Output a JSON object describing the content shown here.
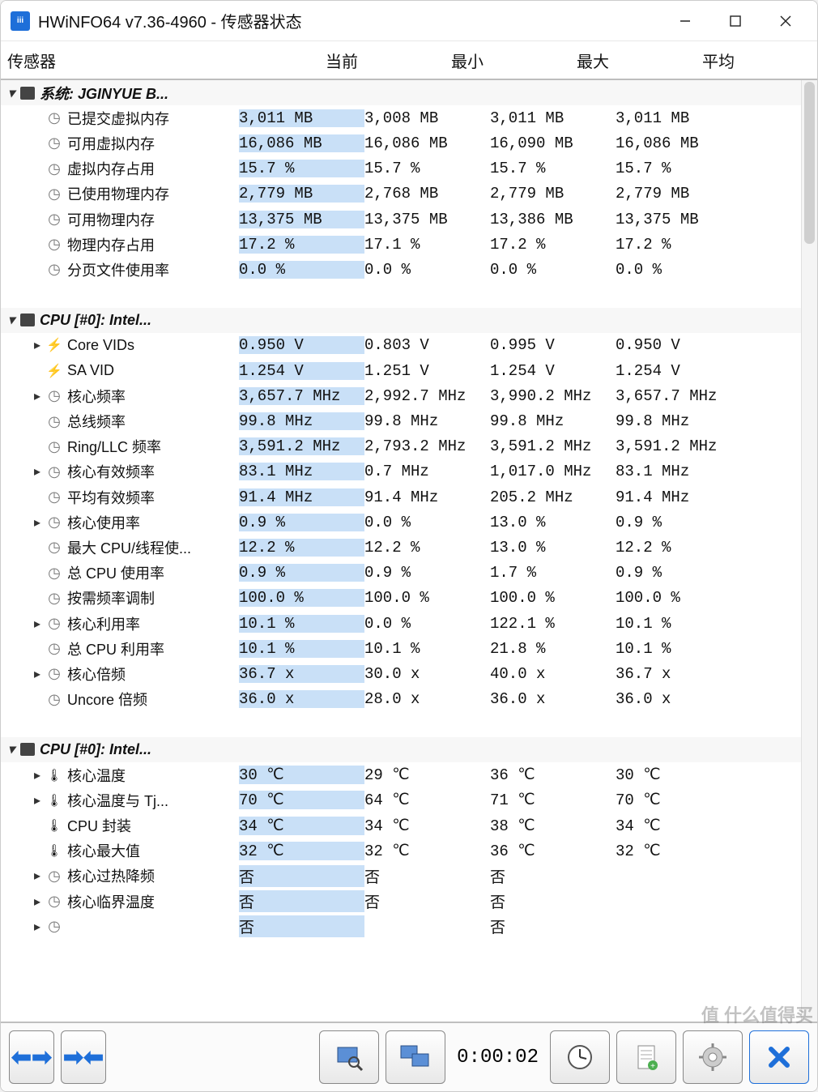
{
  "window": {
    "title": "HWiNFO64 v7.36-4960 - 传感器状态"
  },
  "columns": {
    "sensor": "传感器",
    "current": "当前",
    "min": "最小",
    "max": "最大",
    "avg": "平均"
  },
  "groups": [
    {
      "label": "系统: JGINYUE B...",
      "icon": "chip",
      "rows": [
        {
          "exp": "",
          "icon": "clock",
          "label": "已提交虚拟内存",
          "cur": "3,011 MB",
          "min": "3,008 MB",
          "max": "3,011 MB",
          "avg": "3,011 MB"
        },
        {
          "exp": "",
          "icon": "clock",
          "label": "可用虚拟内存",
          "cur": "16,086 MB",
          "min": "16,086 MB",
          "max": "16,090 MB",
          "avg": "16,086 MB"
        },
        {
          "exp": "",
          "icon": "clock",
          "label": "虚拟内存占用",
          "cur": "15.7 %",
          "min": "15.7 %",
          "max": "15.7 %",
          "avg": "15.7 %"
        },
        {
          "exp": "",
          "icon": "clock",
          "label": "已使用物理内存",
          "cur": "2,779 MB",
          "min": "2,768 MB",
          "max": "2,779 MB",
          "avg": "2,779 MB"
        },
        {
          "exp": "",
          "icon": "clock",
          "label": "可用物理内存",
          "cur": "13,375 MB",
          "min": "13,375 MB",
          "max": "13,386 MB",
          "avg": "13,375 MB"
        },
        {
          "exp": "",
          "icon": "clock",
          "label": "物理内存占用",
          "cur": "17.2 %",
          "min": "17.1 %",
          "max": "17.2 %",
          "avg": "17.2 %"
        },
        {
          "exp": "",
          "icon": "clock",
          "label": "分页文件使用率",
          "cur": "0.0 %",
          "min": "0.0 %",
          "max": "0.0 %",
          "avg": "0.0 %"
        }
      ]
    },
    {
      "label": "CPU [#0]: Intel...",
      "icon": "chip",
      "rows": [
        {
          "exp": "right",
          "icon": "bolt",
          "label": "Core VIDs",
          "cur": "0.950 V",
          "min": "0.803 V",
          "max": "0.995 V",
          "avg": "0.950 V"
        },
        {
          "exp": "",
          "icon": "bolt",
          "label": "SA VID",
          "cur": "1.254 V",
          "min": "1.251 V",
          "max": "1.254 V",
          "avg": "1.254 V"
        },
        {
          "exp": "right",
          "icon": "clock",
          "label": "核心频率",
          "cur": "3,657.7 MHz",
          "min": "2,992.7 MHz",
          "max": "3,990.2 MHz",
          "avg": "3,657.7 MHz"
        },
        {
          "exp": "",
          "icon": "clock",
          "label": "总线频率",
          "cur": "99.8 MHz",
          "min": "99.8 MHz",
          "max": "99.8 MHz",
          "avg": "99.8 MHz"
        },
        {
          "exp": "",
          "icon": "clock",
          "label": "Ring/LLC 频率",
          "cur": "3,591.2 MHz",
          "min": "2,793.2 MHz",
          "max": "3,591.2 MHz",
          "avg": "3,591.2 MHz"
        },
        {
          "exp": "right",
          "icon": "clock",
          "label": "核心有效频率",
          "cur": "83.1 MHz",
          "min": "0.7 MHz",
          "max": "1,017.0 MHz",
          "avg": "83.1 MHz"
        },
        {
          "exp": "",
          "icon": "clock",
          "label": "平均有效频率",
          "cur": "91.4 MHz",
          "min": "91.4 MHz",
          "max": "205.2 MHz",
          "avg": "91.4 MHz"
        },
        {
          "exp": "right",
          "icon": "clock",
          "label": "核心使用率",
          "cur": "0.9 %",
          "min": "0.0 %",
          "max": "13.0 %",
          "avg": "0.9 %"
        },
        {
          "exp": "",
          "icon": "clock",
          "label": "最大 CPU/线程使...",
          "cur": "12.2 %",
          "min": "12.2 %",
          "max": "13.0 %",
          "avg": "12.2 %"
        },
        {
          "exp": "",
          "icon": "clock",
          "label": "总 CPU 使用率",
          "cur": "0.9 %",
          "min": "0.9 %",
          "max": "1.7 %",
          "avg": "0.9 %"
        },
        {
          "exp": "",
          "icon": "clock",
          "label": "按需频率调制",
          "cur": "100.0 %",
          "min": "100.0 %",
          "max": "100.0 %",
          "avg": "100.0 %"
        },
        {
          "exp": "right",
          "icon": "clock",
          "label": "核心利用率",
          "cur": "10.1 %",
          "min": "0.0 %",
          "max": "122.1 %",
          "avg": "10.1 %"
        },
        {
          "exp": "",
          "icon": "clock",
          "label": "总 CPU 利用率",
          "cur": "10.1 %",
          "min": "10.1 %",
          "max": "21.8 %",
          "avg": "10.1 %"
        },
        {
          "exp": "right",
          "icon": "clock",
          "label": "核心倍频",
          "cur": "36.7 x",
          "min": "30.0 x",
          "max": "40.0 x",
          "avg": "36.7 x"
        },
        {
          "exp": "",
          "icon": "clock",
          "label": "Uncore 倍频",
          "cur": "36.0 x",
          "min": "28.0 x",
          "max": "36.0 x",
          "avg": "36.0 x"
        }
      ]
    },
    {
      "label": "CPU [#0]: Intel...",
      "icon": "chip",
      "rows": [
        {
          "exp": "right",
          "icon": "therm",
          "label": "核心温度",
          "cur": "30 ℃",
          "min": "29 ℃",
          "max": "36 ℃",
          "avg": "30 ℃"
        },
        {
          "exp": "right",
          "icon": "therm",
          "label": "核心温度与 Tj...",
          "cur": "70 ℃",
          "min": "64 ℃",
          "max": "71 ℃",
          "avg": "70 ℃"
        },
        {
          "exp": "",
          "icon": "therm",
          "label": "CPU 封装",
          "cur": "34 ℃",
          "min": "34 ℃",
          "max": "38 ℃",
          "avg": "34 ℃"
        },
        {
          "exp": "",
          "icon": "therm",
          "label": "核心最大值",
          "cur": "32 ℃",
          "min": "32 ℃",
          "max": "36 ℃",
          "avg": "32 ℃"
        },
        {
          "exp": "right",
          "icon": "clock",
          "label": "核心过热降频",
          "cur": "否",
          "min": "否",
          "max": "否",
          "avg": ""
        },
        {
          "exp": "right",
          "icon": "clock",
          "label": "核心临界温度",
          "cur": "否",
          "min": "否",
          "max": "否",
          "avg": ""
        },
        {
          "exp": "right",
          "icon": "clock",
          "label": "",
          "cur": "否",
          "min": "",
          "max": "否",
          "avg": ""
        }
      ]
    }
  ],
  "toolbar": {
    "timer": "0:00:02"
  },
  "watermark": "值 什么值得买",
  "colors": {
    "cur_highlight": "#c9e0f7",
    "group_val_bg": "#dcdcdc",
    "border": "#bdbdbd"
  }
}
